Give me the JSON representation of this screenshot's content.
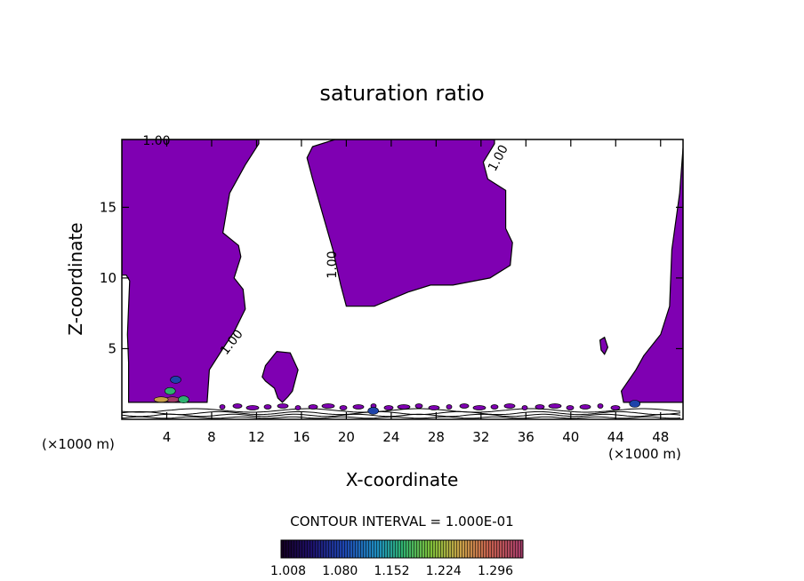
{
  "chart_data": {
    "type": "contour",
    "title": "saturation ratio",
    "xlabel": "X-coordinate",
    "ylabel": "Z-coordinate",
    "x_unit_label_left": "(×1000 m)",
    "x_unit_label_right": "(×1000 m)",
    "xlim": [
      0,
      50
    ],
    "ylim": [
      0,
      19.8
    ],
    "x_ticks": [
      4,
      8,
      12,
      16,
      20,
      24,
      28,
      32,
      36,
      40,
      44,
      48
    ],
    "y_ticks": [
      5,
      10,
      15
    ],
    "contour_labels": [
      "1.00",
      "1.00",
      "1.00",
      "1.00"
    ],
    "fill_color": "#7f00b2",
    "contour_interval_text": "CONTOUR INTERVAL = 1.000E-01",
    "colorbar_ticks": [
      "1.008",
      "1.080",
      "1.152",
      "1.224",
      "1.296"
    ],
    "regions": [
      {
        "name": "left-tall",
        "points": [
          [
            0,
            19.8
          ],
          [
            12.2,
            19.8
          ],
          [
            12.2,
            19.5
          ],
          [
            11,
            18
          ],
          [
            9.6,
            16
          ],
          [
            9,
            13.2
          ],
          [
            10.4,
            12.3
          ],
          [
            10.6,
            11.5
          ],
          [
            10,
            10
          ],
          [
            10.8,
            9.2
          ],
          [
            11,
            7.8
          ],
          [
            10,
            6.2
          ],
          [
            9,
            5
          ],
          [
            7.8,
            3.5
          ],
          [
            7.6,
            1.2
          ],
          [
            0.6,
            1.2
          ],
          [
            0.6,
            4
          ],
          [
            0.5,
            6
          ],
          [
            0.6,
            8
          ],
          [
            0.7,
            9.8
          ],
          [
            0.4,
            10.2
          ],
          [
            0,
            10.2
          ]
        ]
      },
      {
        "name": "top-middle",
        "points": [
          [
            16.5,
            18.5
          ],
          [
            17,
            19.3
          ],
          [
            19,
            19.8
          ],
          [
            33.2,
            19.8
          ],
          [
            33.2,
            19.5
          ],
          [
            32.2,
            18.2
          ],
          [
            32.6,
            17
          ],
          [
            34.2,
            16.2
          ],
          [
            34.2,
            13.5
          ],
          [
            34.8,
            12.5
          ],
          [
            34.6,
            10.9
          ],
          [
            32.8,
            10
          ],
          [
            29.5,
            9.5
          ],
          [
            27.5,
            9.5
          ],
          [
            25.5,
            9
          ],
          [
            22.5,
            8
          ],
          [
            20,
            8
          ],
          [
            19.5,
            9.5
          ],
          [
            18.8,
            12
          ],
          [
            17,
            17
          ]
        ]
      },
      {
        "name": "right-edge",
        "points": [
          [
            50,
            19.2
          ],
          [
            49.7,
            16
          ],
          [
            49,
            12
          ],
          [
            48.8,
            8
          ],
          [
            48,
            6
          ],
          [
            46.5,
            4.5
          ],
          [
            45.8,
            3.5
          ],
          [
            44.5,
            2
          ],
          [
            44.7,
            1.2
          ],
          [
            50,
            1.2
          ]
        ]
      },
      {
        "name": "blob-14",
        "points": [
          [
            12.5,
            3
          ],
          [
            12.8,
            3.8
          ],
          [
            13.8,
            4.8
          ],
          [
            15,
            4.7
          ],
          [
            15.7,
            3.5
          ],
          [
            15.2,
            2
          ],
          [
            14.8,
            1.6
          ],
          [
            14.3,
            1.2
          ],
          [
            13.9,
            1.5
          ],
          [
            13.6,
            2.2
          ],
          [
            12.8,
            2.7
          ]
        ]
      },
      {
        "name": "blob-43",
        "points": [
          [
            42.6,
            5.6
          ],
          [
            43,
            5.8
          ],
          [
            43.3,
            5.1
          ],
          [
            43,
            4.6
          ],
          [
            42.7,
            4.9
          ]
        ]
      }
    ],
    "hot_spots": [
      {
        "x": 4.5,
        "y": 1.4,
        "level": 1.296
      },
      {
        "x": 3.5,
        "y": 1.4,
        "level": 1.224
      },
      {
        "x": 4.3,
        "y": 2.0,
        "level": 1.152
      },
      {
        "x": 5.5,
        "y": 1.4,
        "level": 1.152
      },
      {
        "x": 4.8,
        "y": 2.8,
        "level": 1.08
      },
      {
        "x": 22.4,
        "y": 0.6,
        "level": 1.08
      },
      {
        "x": 45.7,
        "y": 1.1,
        "level": 1.08
      }
    ]
  }
}
